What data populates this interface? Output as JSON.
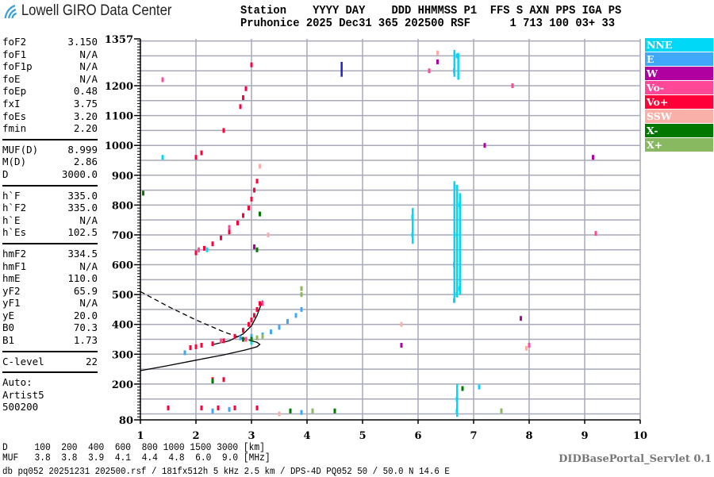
{
  "logo": {
    "text": "Lowell GIRO Data Center"
  },
  "header": {
    "line1": "Station    YYYY DAY    DDD HHMMSS P1  FFS S AXN PPS IGA PS",
    "line2": "Pruhonice 2025 Dec31 365 202500 RSF      1 713 100 03+ 33"
  },
  "scaled": {
    "groups": [
      [
        [
          "foF2",
          "3.150"
        ],
        [
          "foF1",
          "N/A"
        ],
        [
          "foF1p",
          "N/A"
        ],
        [
          "foE",
          "N/A"
        ],
        [
          "foEp",
          "0.48"
        ],
        [
          "fxI",
          "3.75"
        ],
        [
          "foEs",
          "3.20"
        ],
        [
          "fmin",
          "2.20"
        ]
      ],
      [
        [
          "MUF(D)",
          "8.999"
        ],
        [
          "M(D)",
          "2.86"
        ],
        [
          "D",
          "3000.0"
        ]
      ],
      [
        [
          "h`F",
          "335.0"
        ],
        [
          "h`F2",
          "335.0"
        ],
        [
          "h`E",
          "N/A"
        ],
        [
          "h`Es",
          "102.5"
        ]
      ],
      [
        [
          "hmF2",
          "334.5"
        ],
        [
          "hmF1",
          "N/A"
        ],
        [
          "hmE",
          "110.0"
        ],
        [
          "yF2",
          "65.9"
        ],
        [
          "yF1",
          "N/A"
        ],
        [
          "yE",
          "20.0"
        ],
        [
          "B0",
          "70.3"
        ],
        [
          "B1",
          "1.73"
        ]
      ],
      [
        [
          "C-level",
          "22"
        ]
      ]
    ],
    "autoscaling": [
      "Auto:",
      "Artist5",
      "500200"
    ]
  },
  "legend": [
    {
      "label": "NNE",
      "color": "#00d8f8"
    },
    {
      "label": "E",
      "color": "#40a8f8"
    },
    {
      "label": "W",
      "color": "#b000a0"
    },
    {
      "label": "Vo-",
      "color": "#ff4898"
    },
    {
      "label": "Vo+",
      "color": "#ff0038"
    },
    {
      "label": "SSW",
      "color": "#f8b0a8"
    },
    {
      "label": "X-",
      "color": "#007800"
    },
    {
      "label": "X+",
      "color": "#88b860"
    }
  ],
  "muf_table": {
    "d_label": "D",
    "d_values": [
      "100",
      "200",
      "400",
      "600",
      "800",
      "1000",
      "1500",
      "3000"
    ],
    "d_unit": "[km]",
    "muf_label": "MUF",
    "muf_values": [
      "3.8",
      "3.8",
      "3.9",
      "4.1",
      "4.4",
      "4.8",
      "6.0",
      "9.0"
    ],
    "muf_unit": "[MHz]"
  },
  "footer": "db pq052 20251231 202500.rsf / 181fx512h 5 kHz 2.5 km / DPS-4D PQ052 50 / 50.0 N 14.6 E",
  "servlet": "DIDBasePortal_Servlet 0.1",
  "chart_data": {
    "type": "scatter",
    "xlim": [
      1,
      10
    ],
    "ylim": [
      80,
      1357
    ],
    "x_ticks": [
      "1",
      "2",
      "3",
      "4",
      "5",
      "6",
      "7",
      "8",
      "9",
      "10"
    ],
    "y_ticks": [
      "80",
      "200",
      "300",
      "400",
      "500",
      "600",
      "700",
      "800",
      "900",
      "1000",
      "1100",
      "1200",
      "1357"
    ],
    "grid": true,
    "series": [
      {
        "name": "Vo+",
        "color": "#ff0038",
        "points": [
          [
            1.9,
            322
          ],
          [
            2.0,
            325
          ],
          [
            2.1,
            330
          ],
          [
            2.3,
            335
          ],
          [
            2.5,
            345
          ],
          [
            2.7,
            360
          ],
          [
            2.85,
            380
          ],
          [
            2.95,
            400
          ],
          [
            3.0,
            415
          ],
          [
            3.05,
            430
          ],
          [
            3.1,
            450
          ],
          [
            3.15,
            470
          ],
          [
            2.0,
            640
          ],
          [
            2.15,
            655
          ],
          [
            2.3,
            670
          ],
          [
            2.45,
            690
          ],
          [
            2.6,
            710
          ],
          [
            2.75,
            740
          ],
          [
            2.85,
            765
          ],
          [
            2.95,
            790
          ],
          [
            3.0,
            820
          ],
          [
            3.05,
            850
          ],
          [
            3.1,
            880
          ],
          [
            2.0,
            960
          ],
          [
            2.1,
            975
          ],
          [
            2.5,
            1050
          ],
          [
            2.8,
            1130
          ],
          [
            2.85,
            1160
          ],
          [
            2.9,
            1190
          ],
          [
            3.0,
            1270
          ],
          [
            2.3,
            215
          ],
          [
            2.5,
            215
          ],
          [
            1.5,
            120
          ],
          [
            2.1,
            120
          ],
          [
            2.4,
            120
          ],
          [
            2.7,
            120
          ],
          [
            3.1,
            120
          ]
        ]
      },
      {
        "name": "Vo-",
        "color": "#ff4898",
        "points": [
          [
            2.45,
            345
          ],
          [
            2.9,
            350
          ],
          [
            3.2,
            470
          ],
          [
            2.05,
            650
          ],
          [
            2.6,
            725
          ],
          [
            1.4,
            1220
          ],
          [
            7.7,
            1200
          ],
          [
            9.2,
            705
          ],
          [
            6.2,
            1250
          ],
          [
            8.0,
            330
          ]
        ]
      },
      {
        "name": "E",
        "color": "#40a8f8",
        "points": [
          [
            2.8,
            355
          ],
          [
            3.0,
            360
          ],
          [
            3.2,
            365
          ],
          [
            3.35,
            375
          ],
          [
            3.5,
            390
          ],
          [
            3.65,
            410
          ],
          [
            3.8,
            430
          ],
          [
            3.9,
            450
          ],
          [
            1.8,
            305
          ],
          [
            2.3,
            110
          ],
          [
            2.6,
            115
          ],
          [
            3.9,
            105
          ]
        ]
      },
      {
        "name": "NNE",
        "color": "#00d8f8",
        "points": [
          [
            2.2,
            650
          ],
          [
            1.4,
            960
          ],
          [
            6.65,
            480
          ],
          [
            6.7,
            500
          ],
          [
            6.75,
            520
          ],
          [
            6.65,
            600
          ],
          [
            6.7,
            700
          ],
          [
            6.75,
            800
          ],
          [
            6.7,
            860
          ],
          [
            5.9,
            700
          ],
          [
            5.9,
            760
          ],
          [
            6.65,
            1250
          ],
          [
            6.7,
            1300
          ],
          [
            6.7,
            110
          ],
          [
            6.7,
            150
          ],
          [
            3.0,
            340
          ],
          [
            7.1,
            190
          ]
        ]
      },
      {
        "name": "W",
        "color": "#b000a0",
        "points": [
          [
            3.05,
            660
          ],
          [
            7.2,
            1000
          ],
          [
            9.15,
            960
          ],
          [
            6.35,
            1280
          ],
          [
            5.7,
            330
          ],
          [
            7.85,
            420
          ]
        ]
      },
      {
        "name": "SSW",
        "color": "#f8b0a8",
        "points": [
          [
            3.3,
            700
          ],
          [
            3.15,
            930
          ],
          [
            5.7,
            400
          ],
          [
            7.95,
            320
          ],
          [
            6.35,
            1310
          ],
          [
            3.5,
            100
          ]
        ]
      },
      {
        "name": "X-",
        "color": "#007800",
        "points": [
          [
            1.05,
            840
          ],
          [
            2.85,
            350
          ],
          [
            3.0,
            350
          ],
          [
            3.1,
            650
          ],
          [
            3.15,
            770
          ],
          [
            2.3,
            210
          ],
          [
            4.5,
            110
          ],
          [
            3.7,
            110
          ],
          [
            6.8,
            185
          ]
        ]
      },
      {
        "name": "X+",
        "color": "#88b860",
        "points": [
          [
            3.1,
            355
          ],
          [
            3.2,
            360
          ],
          [
            3.9,
            520
          ],
          [
            3.9,
            500
          ],
          [
            4.1,
            110
          ],
          [
            7.5,
            110
          ]
        ]
      }
    ],
    "extra_marks": [
      {
        "color": "#2020d0",
        "x": 4.62,
        "y_from": 1230,
        "y_to": 1280
      }
    ],
    "curves": [
      {
        "style": "solid",
        "color": "#000",
        "points": [
          [
            1.0,
            245
          ],
          [
            1.5,
            262
          ],
          [
            2.0,
            280
          ],
          [
            2.5,
            298
          ],
          [
            2.9,
            315
          ],
          [
            3.1,
            325
          ],
          [
            3.15,
            333
          ],
          [
            3.1,
            340
          ],
          [
            3.0,
            345
          ]
        ]
      },
      {
        "style": "solid",
        "color": "#000",
        "points": [
          [
            2.3,
            332
          ],
          [
            2.6,
            345
          ],
          [
            2.85,
            368
          ],
          [
            3.0,
            395
          ],
          [
            3.1,
            430
          ],
          [
            3.18,
            470
          ],
          [
            3.2,
            480
          ]
        ]
      },
      {
        "style": "dashed",
        "color": "#000",
        "points": [
          [
            1.0,
            510
          ],
          [
            1.5,
            460
          ],
          [
            2.0,
            415
          ],
          [
            2.5,
            375
          ],
          [
            2.8,
            355
          ],
          [
            3.0,
            345
          ],
          [
            3.1,
            340
          ]
        ]
      }
    ]
  }
}
